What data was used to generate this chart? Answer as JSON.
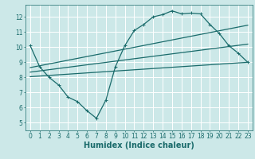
{
  "title": "",
  "xlabel": "Humidex (Indice chaleur)",
  "ylabel": "",
  "bg_color": "#cce8e8",
  "grid_color": "#ffffff",
  "line_color": "#1a6b6b",
  "xlim": [
    -0.5,
    23.5
  ],
  "ylim": [
    4.5,
    12.8
  ],
  "xticks": [
    0,
    1,
    2,
    3,
    4,
    5,
    6,
    7,
    8,
    9,
    10,
    11,
    12,
    13,
    14,
    15,
    16,
    17,
    18,
    19,
    20,
    21,
    22,
    23
  ],
  "yticks": [
    5,
    6,
    7,
    8,
    9,
    10,
    11,
    12
  ],
  "curve_x": [
    0,
    1,
    2,
    3,
    4,
    5,
    6,
    7,
    8,
    9,
    10,
    11,
    12,
    13,
    14,
    15,
    16,
    17,
    18,
    19,
    20,
    21,
    22,
    23
  ],
  "curve_y": [
    10.1,
    8.7,
    8.0,
    7.5,
    6.7,
    6.4,
    5.8,
    5.3,
    6.5,
    8.7,
    10.1,
    11.1,
    11.5,
    12.0,
    12.15,
    12.4,
    12.2,
    12.25,
    12.2,
    11.5,
    10.9,
    10.1,
    9.6,
    9.0
  ],
  "line1_x": [
    0,
    23
  ],
  "line1_y": [
    8.65,
    11.45
  ],
  "line2_x": [
    0,
    23
  ],
  "line2_y": [
    8.05,
    9.0
  ],
  "line3_x": [
    0,
    23
  ],
  "line3_y": [
    8.35,
    10.2
  ],
  "marker_size": 2.5,
  "line_width": 0.9,
  "xlabel_fontsize": 7,
  "tick_fontsize": 5.5
}
